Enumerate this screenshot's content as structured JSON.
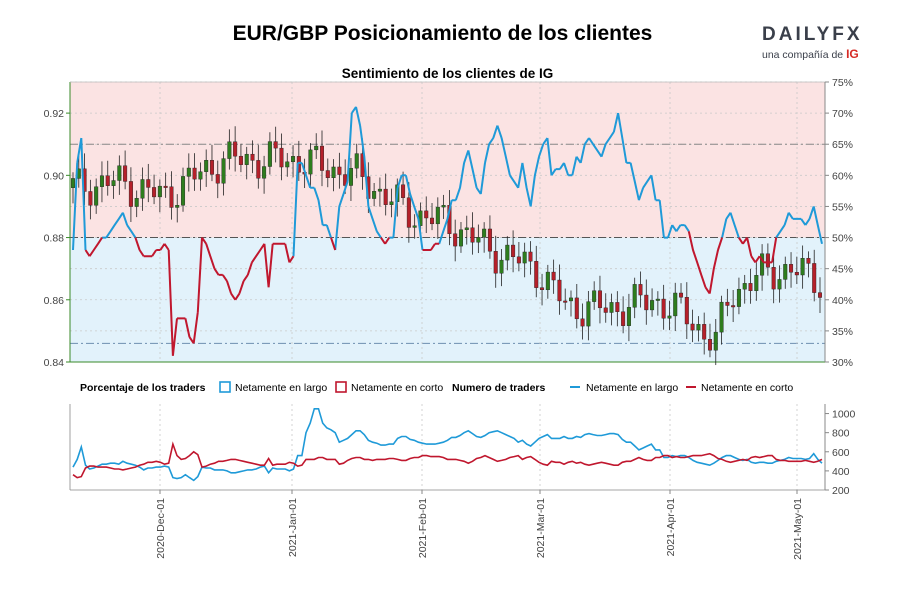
{
  "title": "EUR/GBP Posicionamiento de los clientes",
  "logo": {
    "brand": "DAILYFX",
    "sub": "una compañía de",
    "ig": "IG"
  },
  "colors": {
    "long": "#1f9ad8",
    "short": "#c0172e",
    "up": "#2e7d1e",
    "down": "#b5202a",
    "bg_short": "#fbe3e3",
    "bg_long": "#e2f2fb"
  },
  "chart_data": {
    "type": "line",
    "subtitle": "Sentimiento de los clientes de IG",
    "price_axis": {
      "ticks": [
        "0.84",
        "0.86",
        "0.88",
        "0.90",
        "0.92"
      ],
      "values": [
        0.84,
        0.86,
        0.88,
        0.9,
        0.92
      ],
      "ylim": [
        0.84,
        0.93
      ]
    },
    "pct_axis": {
      "ticks": [
        "30%",
        "35%",
        "40%",
        "45%",
        "50%",
        "55%",
        "60%",
        "65%",
        "70%",
        "75%"
      ],
      "values": [
        30,
        35,
        40,
        45,
        50,
        55,
        60,
        65,
        70,
        75
      ],
      "ylim": [
        30,
        75
      ]
    },
    "count_axis": {
      "ticks": [
        "200",
        "400",
        "600",
        "800",
        "1000"
      ],
      "values": [
        200,
        400,
        600,
        800,
        1000
      ],
      "ylim": [
        200,
        1100
      ]
    },
    "x_ticks": [
      "2020-Dec-01",
      "2021-Jan-01",
      "2021-Feb-01",
      "2021-Mar-01",
      "2021-Apr-01",
      "2021-May-01"
    ],
    "x_range": [
      "2020-Nov-16",
      "2021-May-08"
    ],
    "legend": {
      "pct_title": "Porcentaje de los traders",
      "pct_long": "Netamente en largo",
      "pct_short": "Netamente en corto",
      "count_title": "Numero de traders",
      "count_long": "Netamente en largo",
      "count_short": "Netamente en corto"
    },
    "pct_long_series": [
      48,
      62,
      66,
      48,
      47,
      48,
      49,
      50,
      50,
      51,
      52,
      53,
      54,
      52,
      51,
      50,
      48,
      47,
      47,
      47,
      48,
      48,
      49,
      48,
      31,
      37,
      37,
      37,
      34,
      33,
      38,
      50,
      49,
      47,
      45,
      44,
      44,
      43,
      41,
      40,
      41,
      43,
      44,
      46,
      47,
      48,
      49,
      42,
      49,
      49,
      49,
      49,
      46,
      47,
      62,
      62,
      60,
      58,
      58,
      56,
      52,
      52,
      50,
      48,
      55,
      57,
      59,
      70,
      71,
      68,
      63,
      55,
      53,
      51,
      50,
      49,
      50,
      50,
      58,
      60,
      60,
      57,
      55,
      53,
      48,
      48,
      48,
      49,
      49,
      51,
      53,
      56,
      56,
      58,
      62,
      64,
      61,
      58,
      57,
      62,
      65,
      66,
      68,
      66,
      63,
      60,
      59,
      58,
      62,
      58,
      55,
      60,
      63,
      65,
      66,
      60,
      61,
      61,
      62,
      60,
      60,
      63,
      62,
      65,
      66,
      65,
      64,
      63,
      65,
      66,
      67,
      70,
      66,
      62,
      62,
      59,
      56,
      58,
      59,
      60,
      56,
      56,
      50,
      50,
      52,
      51,
      52,
      52,
      51,
      48,
      46,
      44,
      42,
      41,
      45,
      48,
      50,
      53,
      54,
      52,
      50,
      49,
      50,
      47,
      46,
      47,
      46,
      46,
      46,
      50,
      51,
      52,
      54,
      53,
      53,
      53,
      52,
      53,
      55,
      52,
      49
    ],
    "long_count_series": [
      440,
      520,
      650,
      460,
      420,
      430,
      450,
      470,
      470,
      480,
      480,
      470,
      500,
      480,
      470,
      460,
      440,
      410,
      430,
      430,
      440,
      440,
      450,
      440,
      330,
      320,
      330,
      360,
      330,
      300,
      340,
      440,
      430,
      430,
      410,
      410,
      410,
      400,
      380,
      380,
      390,
      400,
      410,
      410,
      420,
      440,
      450,
      380,
      430,
      420,
      420,
      420,
      400,
      420,
      560,
      560,
      800,
      900,
      1050,
      1050,
      900,
      850,
      830,
      800,
      700,
      720,
      740,
      780,
      820,
      820,
      780,
      720,
      700,
      690,
      670,
      670,
      680,
      680,
      740,
      760,
      760,
      730,
      720,
      700,
      690,
      680,
      680,
      680,
      690,
      700,
      720,
      750,
      750,
      770,
      800,
      820,
      790,
      760,
      750,
      770,
      800,
      810,
      820,
      800,
      780,
      760,
      740,
      700,
      720,
      680,
      660,
      700,
      740,
      760,
      780,
      740,
      740,
      740,
      760,
      740,
      740,
      760,
      750,
      780,
      790,
      780,
      770,
      770,
      780,
      790,
      790,
      780,
      730,
      700,
      700,
      660,
      620,
      640,
      660,
      680,
      620,
      620,
      540,
      540,
      560,
      550,
      560,
      560,
      540,
      510,
      490,
      480,
      470,
      460,
      480,
      510,
      540,
      560,
      560,
      540,
      520,
      510,
      520,
      490,
      480,
      490,
      490,
      480,
      480,
      500,
      510,
      520,
      540,
      530,
      530,
      530,
      520,
      530,
      580,
      520,
      480
    ],
    "short_count_series": [
      360,
      330,
      340,
      430,
      450,
      450,
      440,
      440,
      440,
      430,
      420,
      420,
      410,
      420,
      430,
      440,
      460,
      470,
      490,
      490,
      500,
      490,
      470,
      480,
      680,
      560,
      520,
      530,
      560,
      600,
      570,
      440,
      450,
      470,
      480,
      500,
      500,
      510,
      520,
      520,
      510,
      500,
      490,
      480,
      470,
      460,
      460,
      530,
      460,
      470,
      470,
      470,
      490,
      480,
      450,
      460,
      520,
      520,
      520,
      540,
      540,
      520,
      520,
      520,
      470,
      480,
      510,
      530,
      540,
      540,
      520,
      520,
      510,
      520,
      520,
      520,
      530,
      530,
      520,
      510,
      510,
      530,
      540,
      540,
      560,
      560,
      550,
      550,
      550,
      540,
      520,
      520,
      520,
      510,
      500,
      480,
      500,
      530,
      540,
      560,
      540,
      520,
      500,
      510,
      520,
      540,
      550,
      560,
      520,
      540,
      550,
      520,
      490,
      470,
      460,
      500,
      490,
      490,
      470,
      490,
      500,
      480,
      490,
      470,
      460,
      470,
      480,
      490,
      480,
      470,
      460,
      460,
      490,
      500,
      500,
      520,
      540,
      520,
      510,
      510,
      540,
      540,
      560,
      560,
      540,
      550,
      540,
      540,
      550,
      560,
      560,
      560,
      570,
      580,
      560,
      530,
      520,
      500,
      490,
      500,
      510,
      520,
      510,
      540,
      550,
      540,
      550,
      560,
      560,
      520,
      510,
      510,
      500,
      500,
      500,
      500,
      510,
      500,
      490,
      500,
      520
    ]
  }
}
